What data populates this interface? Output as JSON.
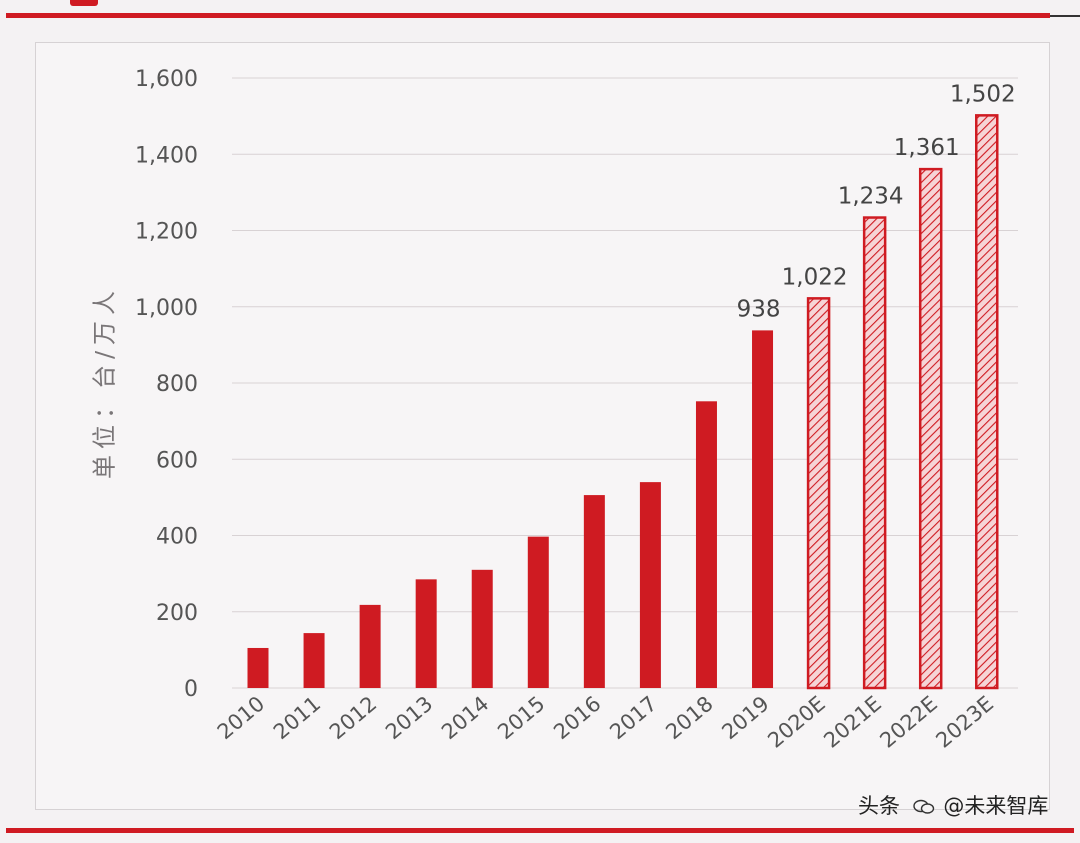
{
  "chart_data": {
    "type": "bar",
    "title": "",
    "ylabel": "单位：台/万人",
    "xlabel": "",
    "ylim": [
      0,
      1600
    ],
    "yticks": [
      "0",
      "200",
      "400",
      "600",
      "800",
      "1,000",
      "1,200",
      "1,400",
      "1,600"
    ],
    "grid": true,
    "categories": [
      "2010",
      "2011",
      "2012",
      "2013",
      "2014",
      "2015",
      "2016",
      "2017",
      "2018",
      "2019",
      "2020E",
      "2021E",
      "2022E",
      "2023E"
    ],
    "values": [
      105,
      144,
      218,
      285,
      310,
      397,
      506,
      540,
      752,
      938,
      1022,
      1234,
      1361,
      1502
    ],
    "data_labels": [
      "",
      "",
      "",
      "",
      "",
      "",
      "",
      "",
      "",
      "938",
      "1,022",
      "1,234",
      "1,361",
      "1,502"
    ],
    "forecast": [
      false,
      false,
      false,
      false,
      false,
      false,
      false,
      false,
      false,
      false,
      true,
      true,
      true,
      true
    ],
    "colors": {
      "bar": "#cf1b22",
      "forecast_fill": "#f6d4d6",
      "grid": "#d8d2d4",
      "text": "#555555"
    }
  },
  "watermark": {
    "prefix": "头条",
    "handle": "@未来智库"
  },
  "decor": {
    "top_rule_color": "#cf1b22",
    "bottom_rule_color": "#cf1b22"
  }
}
